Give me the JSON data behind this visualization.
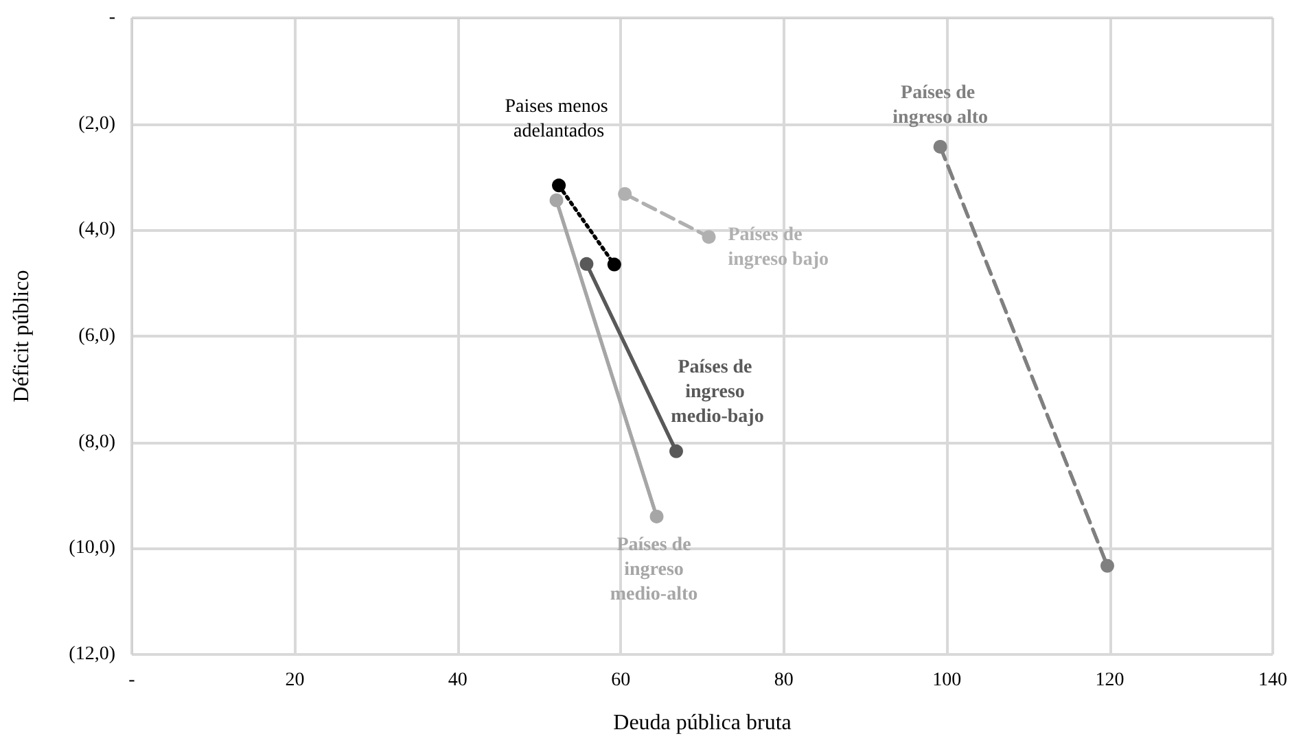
{
  "chart_data": {
    "type": "line",
    "xlabel": "Deuda pública bruta",
    "ylabel": "Déficit público",
    "xlim": [
      0,
      140
    ],
    "xticks": [
      {
        "value": 0,
        "label": "-"
      },
      20,
      40,
      60,
      80,
      100,
      120,
      140
    ],
    "ylim": [
      -12,
      0
    ],
    "yticks": [
      {
        "value": 0,
        "label": "-"
      },
      {
        "value": -2,
        "label": "(2,0)"
      },
      {
        "value": -4,
        "label": "(4,0)"
      },
      {
        "value": -6,
        "label": "(6,0)"
      },
      {
        "value": -8,
        "label": "(8,0)"
      },
      {
        "value": -10,
        "label": "(10,0)"
      },
      {
        "value": -12,
        "label": "(12,0)"
      }
    ],
    "grid": true,
    "legend": false,
    "marker": "circle",
    "series": [
      {
        "name": "Paises menos adelantados",
        "color": "#000000",
        "line_style": "dotted",
        "x": [
          52.4,
          59.2
        ],
        "values": [
          -3.16,
          -4.65
        ]
      },
      {
        "name": "Países de ingreso bajo",
        "color": "#b0b0b0",
        "line_style": "dashed",
        "x": [
          60.5,
          70.8
        ],
        "values": [
          -3.32,
          -4.13
        ]
      },
      {
        "name": "Países de ingreso medio-bajo",
        "color": "#595959",
        "line_style": "solid",
        "x": [
          55.8,
          66.8
        ],
        "values": [
          -4.64,
          -8.17
        ]
      },
      {
        "name": "Países de ingreso medio-alto",
        "color": "#a6a6a6",
        "line_style": "solid",
        "x": [
          52.1,
          64.4
        ],
        "values": [
          -3.44,
          -9.4
        ]
      },
      {
        "name": "Países de ingreso alto",
        "color": "#808080",
        "line_style": "dashed",
        "x": [
          99.2,
          119.7
        ],
        "values": [
          -2.43,
          -10.33
        ]
      }
    ]
  }
}
